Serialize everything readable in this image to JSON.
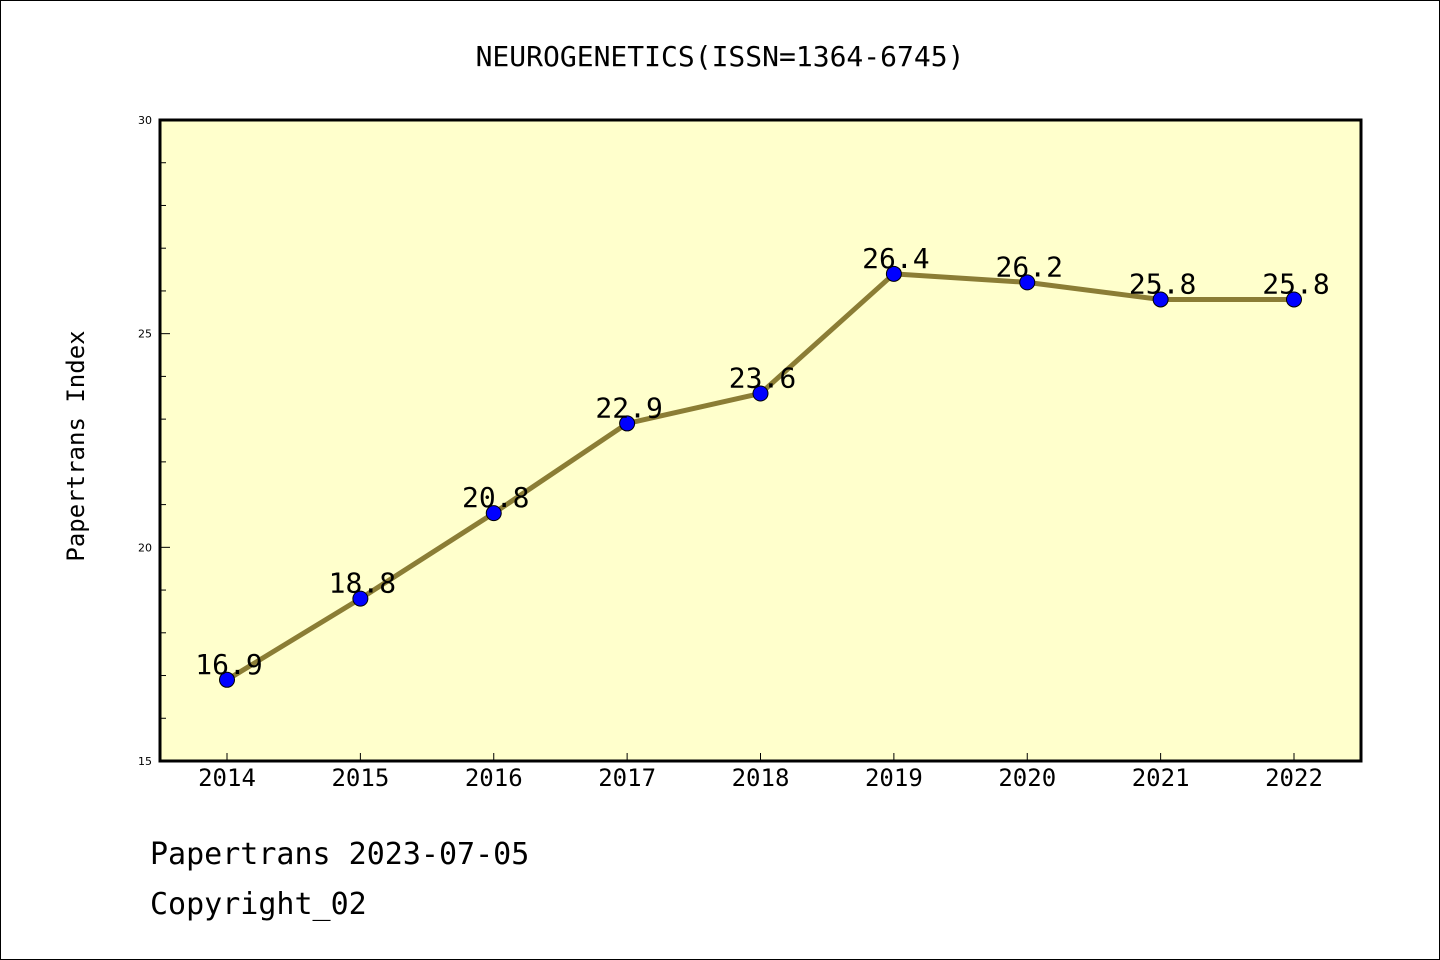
{
  "chart_data": {
    "type": "line",
    "title": "NEUROGENETICS(ISSN=1364-6745)",
    "xlabel": "",
    "ylabel": "Papertrans Index",
    "categories": [
      "2014",
      "2015",
      "2016",
      "2017",
      "2018",
      "2019",
      "2020",
      "2021",
      "2022"
    ],
    "series": [
      {
        "values": [
          16.9,
          18.8,
          20.8,
          22.9,
          23.6,
          26.4,
          26.2,
          25.8,
          25.8
        ],
        "labels": [
          "16.9",
          "18.8",
          "20.8",
          "22.9",
          "23.6",
          "26.4",
          "26.2",
          "25.8",
          "25.8"
        ]
      }
    ],
    "ylim": [
      15,
      30
    ],
    "yticks": [
      15,
      20,
      25,
      30
    ],
    "ytick_labels": [
      "15",
      "20",
      "25",
      "30"
    ],
    "grid": false,
    "legend": "none"
  },
  "colors": {
    "plot_background": "#ffffcc",
    "line": "#8b7d35",
    "marker": "#0000ff",
    "axis": "#000000"
  },
  "footer": {
    "source_line": "Papertrans 2023-07-05",
    "copyright": "Copyright_02"
  }
}
